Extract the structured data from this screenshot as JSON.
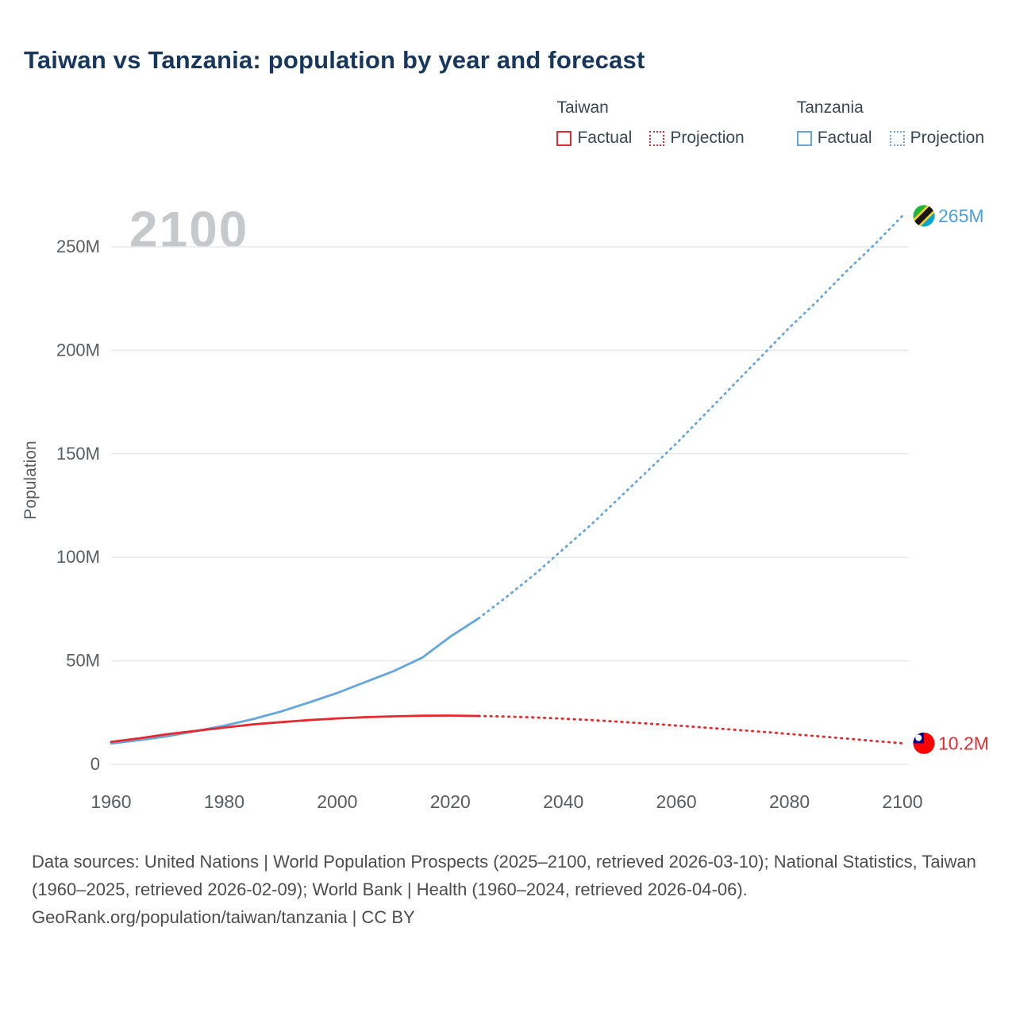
{
  "title": "Taiwan vs Tanzania: population by year and forecast",
  "watermark": "2100",
  "legend": {
    "groups": [
      {
        "name": "Taiwan",
        "color": "#e8282d",
        "items": [
          {
            "label": "Factual",
            "style": "solid"
          },
          {
            "label": "Projection",
            "style": "dotted"
          }
        ]
      },
      {
        "name": "Tanzania",
        "color": "#64a7e0",
        "items": [
          {
            "label": "Factual",
            "style": "solid"
          },
          {
            "label": "Projection",
            "style": "dotted"
          }
        ]
      }
    ]
  },
  "chart_data": {
    "type": "line",
    "title": "Taiwan vs Tanzania: population by year and forecast",
    "xlabel": "",
    "ylabel": "Population",
    "x_range": [
      1960,
      2100
    ],
    "y_range": [
      0,
      250
    ],
    "x_ticks": [
      1960,
      1980,
      2000,
      2020,
      2040,
      2060,
      2080,
      2100
    ],
    "y_ticks": [
      0,
      50,
      100,
      150,
      200,
      250
    ],
    "y_tick_labels": [
      "0",
      "50M",
      "100M",
      "150M",
      "200M",
      "250M"
    ],
    "grid": true,
    "legend_position": "top-right",
    "colors": {
      "taiwan": "#e8282d",
      "tanzania": "#64a7e0"
    },
    "series": [
      {
        "name": "Tanzania Factual",
        "color": "#64a7e0",
        "dash": "solid",
        "points": [
          [
            1960,
            10.1
          ],
          [
            1965,
            11.7
          ],
          [
            1970,
            13.6
          ],
          [
            1975,
            16.1
          ],
          [
            1980,
            18.7
          ],
          [
            1985,
            21.8
          ],
          [
            1990,
            25.5
          ],
          [
            1995,
            29.9
          ],
          [
            2000,
            34.5
          ],
          [
            2005,
            39.8
          ],
          [
            2010,
            45.1
          ],
          [
            2015,
            51.5
          ],
          [
            2020,
            61.7
          ],
          [
            2025,
            70.5
          ]
        ]
      },
      {
        "name": "Tanzania Projection",
        "color": "#64a7e0",
        "dash": "dotted",
        "points": [
          [
            2025,
            70.5
          ],
          [
            2030,
            81
          ],
          [
            2035,
            92
          ],
          [
            2040,
            104
          ],
          [
            2045,
            116
          ],
          [
            2050,
            129
          ],
          [
            2055,
            142
          ],
          [
            2060,
            155
          ],
          [
            2065,
            169
          ],
          [
            2070,
            183
          ],
          [
            2075,
            197
          ],
          [
            2080,
            211
          ],
          [
            2085,
            224
          ],
          [
            2090,
            238
          ],
          [
            2095,
            251
          ],
          [
            2100,
            265
          ]
        ]
      },
      {
        "name": "Taiwan Factual",
        "color": "#e8282d",
        "dash": "solid",
        "points": [
          [
            1960,
            10.9
          ],
          [
            1965,
            12.6
          ],
          [
            1970,
            14.6
          ],
          [
            1975,
            16.2
          ],
          [
            1980,
            17.8
          ],
          [
            1985,
            19.3
          ],
          [
            1990,
            20.4
          ],
          [
            1995,
            21.4
          ],
          [
            2000,
            22.2
          ],
          [
            2005,
            22.8
          ],
          [
            2010,
            23.2
          ],
          [
            2015,
            23.5
          ],
          [
            2020,
            23.6
          ],
          [
            2025,
            23.4
          ]
        ]
      },
      {
        "name": "Taiwan Projection",
        "color": "#e8282d",
        "dash": "dotted",
        "points": [
          [
            2025,
            23.4
          ],
          [
            2030,
            23.1
          ],
          [
            2035,
            22.7
          ],
          [
            2040,
            22.1
          ],
          [
            2045,
            21.4
          ],
          [
            2050,
            20.6
          ],
          [
            2055,
            19.7
          ],
          [
            2060,
            18.8
          ],
          [
            2065,
            17.8
          ],
          [
            2070,
            16.8
          ],
          [
            2075,
            15.8
          ],
          [
            2080,
            14.7
          ],
          [
            2085,
            13.6
          ],
          [
            2090,
            12.5
          ],
          [
            2095,
            11.3
          ],
          [
            2100,
            10.2
          ]
        ]
      }
    ],
    "end_labels": [
      {
        "text": "265M",
        "color": "#4d9fdd",
        "year": 2100,
        "value": 265,
        "flag": "tanzania"
      },
      {
        "text": "10.2M",
        "color": "#e8282d",
        "year": 2100,
        "value": 10.2,
        "flag": "taiwan"
      }
    ]
  },
  "footer": {
    "sources": "Data sources: United Nations | World Population Prospects (2025–2100, retrieved 2026-03-10); National Statistics, Taiwan (1960–2025, retrieved 2026-02-09); World Bank | Health (1960–2024, retrieved 2026-04-06).",
    "attribution": "GeoRank.org/population/taiwan/tanzania | CC BY"
  }
}
